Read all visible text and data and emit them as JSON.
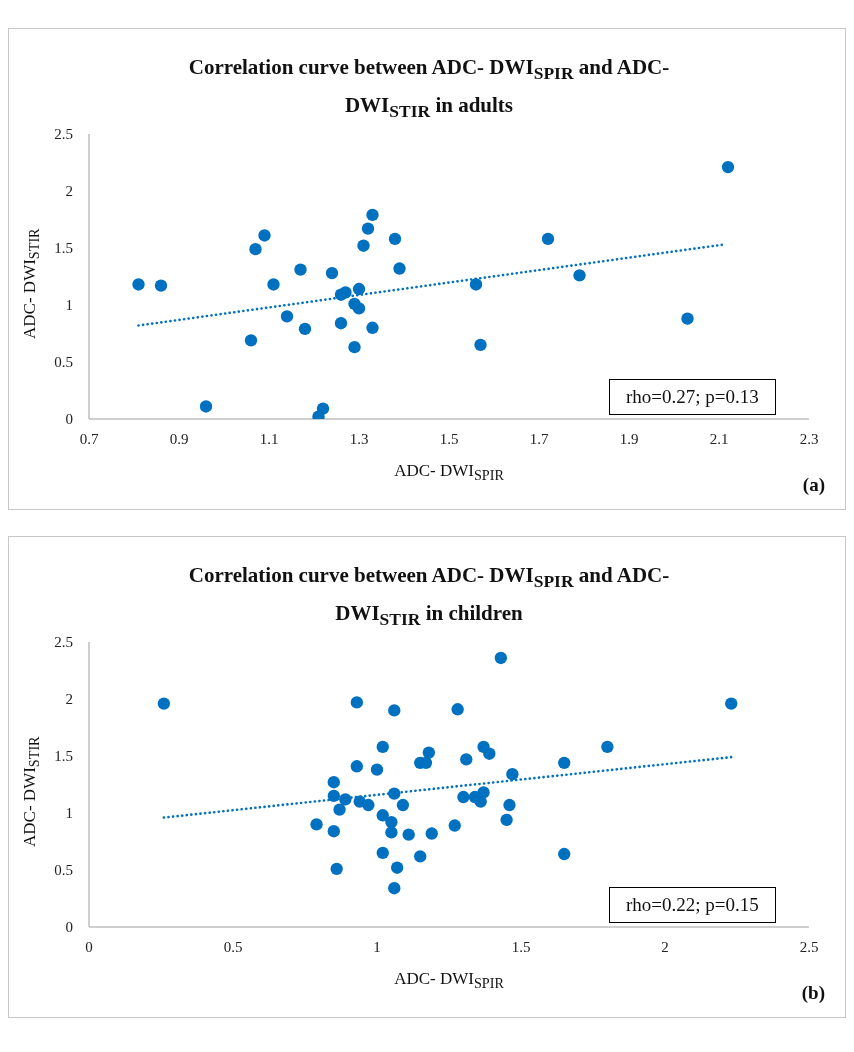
{
  "chart_data": [
    {
      "type": "scatter",
      "title": "Correlation curve between ADC- DWI$_{SPIR}$ and ADC- DWI$_{STIR}$ in adults",
      "xlabel": "ADC- DWI$_{SPIR}$",
      "ylabel": "ADC- DWI$_{STIR}$",
      "xlim": [
        0.7,
        2.3
      ],
      "xticks": [
        0.7,
        0.9,
        1.1,
        1.3,
        1.5,
        1.7,
        1.9,
        2.1,
        2.3
      ],
      "ylim": [
        0,
        2.5
      ],
      "yticks": [
        0,
        0.5,
        1,
        1.5,
        2,
        2.5
      ],
      "annotations": [
        "rho=0.27; p=0.13",
        "(a)"
      ],
      "series": [
        {
          "type": "scatter",
          "color": "#0070c0",
          "marker": "circle",
          "x": [
            0.81,
            0.86,
            0.96,
            1.06,
            1.07,
            1.09,
            1.11,
            1.14,
            1.17,
            1.18,
            1.21,
            1.22,
            1.24,
            1.26,
            1.26,
            1.27,
            1.29,
            1.29,
            1.3,
            1.3,
            1.31,
            1.32,
            1.33,
            1.33,
            1.38,
            1.39,
            1.56,
            1.57,
            1.72,
            1.79,
            2.03,
            2.12
          ],
          "values": [
            1.18,
            1.17,
            0.11,
            0.69,
            1.49,
            1.61,
            1.18,
            0.9,
            1.31,
            0.79,
            0.02,
            0.09,
            1.28,
            0.84,
            1.09,
            1.11,
            0.63,
            1.01,
            1.14,
            0.97,
            1.52,
            1.67,
            1.79,
            0.8,
            1.58,
            1.32,
            1.18,
            0.65,
            1.58,
            1.26,
            0.88,
            2.21
          ]
        },
        {
          "type": "line",
          "color": "#0070c0",
          "marker": "none",
          "line_style": "dotted",
          "x": [
            0.81,
            2.11
          ],
          "values": [
            0.82,
            1.53
          ]
        }
      ]
    },
    {
      "type": "scatter",
      "title": "Correlation curve between ADC- DWI$_{SPIR}$ and ADC- DWI$_{STIR}$ in children",
      "xlabel": "ADC- DWI$_{SPIR}$",
      "ylabel": "ADC- DWI$_{STIR}$",
      "xlim": [
        0,
        2.5
      ],
      "xticks": [
        0,
        0.5,
        1,
        1.5,
        2,
        2.5
      ],
      "ylim": [
        0,
        2.5
      ],
      "yticks": [
        0,
        0.5,
        1,
        1.5,
        2,
        2.5
      ],
      "annotations": [
        "rho=0.22; p=0.15",
        "(b)"
      ],
      "series": [
        {
          "type": "scatter",
          "color": "#0070c0",
          "marker": "circle",
          "x": [
            0.26,
            0.79,
            0.85,
            0.85,
            0.85,
            0.86,
            0.87,
            0.89,
            0.93,
            0.93,
            0.94,
            0.97,
            1.0,
            1.02,
            1.02,
            1.02,
            1.05,
            1.05,
            1.06,
            1.06,
            1.06,
            1.07,
            1.09,
            1.11,
            1.15,
            1.15,
            1.17,
            1.18,
            1.19,
            1.27,
            1.28,
            1.3,
            1.31,
            1.34,
            1.36,
            1.37,
            1.37,
            1.39,
            1.43,
            1.45,
            1.46,
            1.47,
            1.65,
            1.65,
            1.8,
            2.23
          ],
          "values": [
            1.96,
            0.9,
            1.27,
            1.15,
            0.84,
            0.51,
            1.03,
            1.12,
            1.41,
            1.97,
            1.1,
            1.07,
            1.38,
            1.58,
            0.98,
            0.65,
            0.92,
            0.83,
            1.9,
            1.17,
            0.34,
            0.52,
            1.07,
            0.81,
            0.62,
            1.44,
            1.44,
            1.53,
            0.82,
            0.89,
            1.91,
            1.14,
            1.47,
            1.14,
            1.1,
            1.18,
            1.58,
            1.52,
            2.36,
            0.94,
            1.07,
            1.34,
            1.44,
            0.64,
            1.58,
            1.96
          ]
        },
        {
          "type": "line",
          "color": "#0070c0",
          "marker": "none",
          "line_style": "dotted",
          "x": [
            0.26,
            2.23
          ],
          "values": [
            0.96,
            1.49
          ]
        }
      ]
    }
  ]
}
